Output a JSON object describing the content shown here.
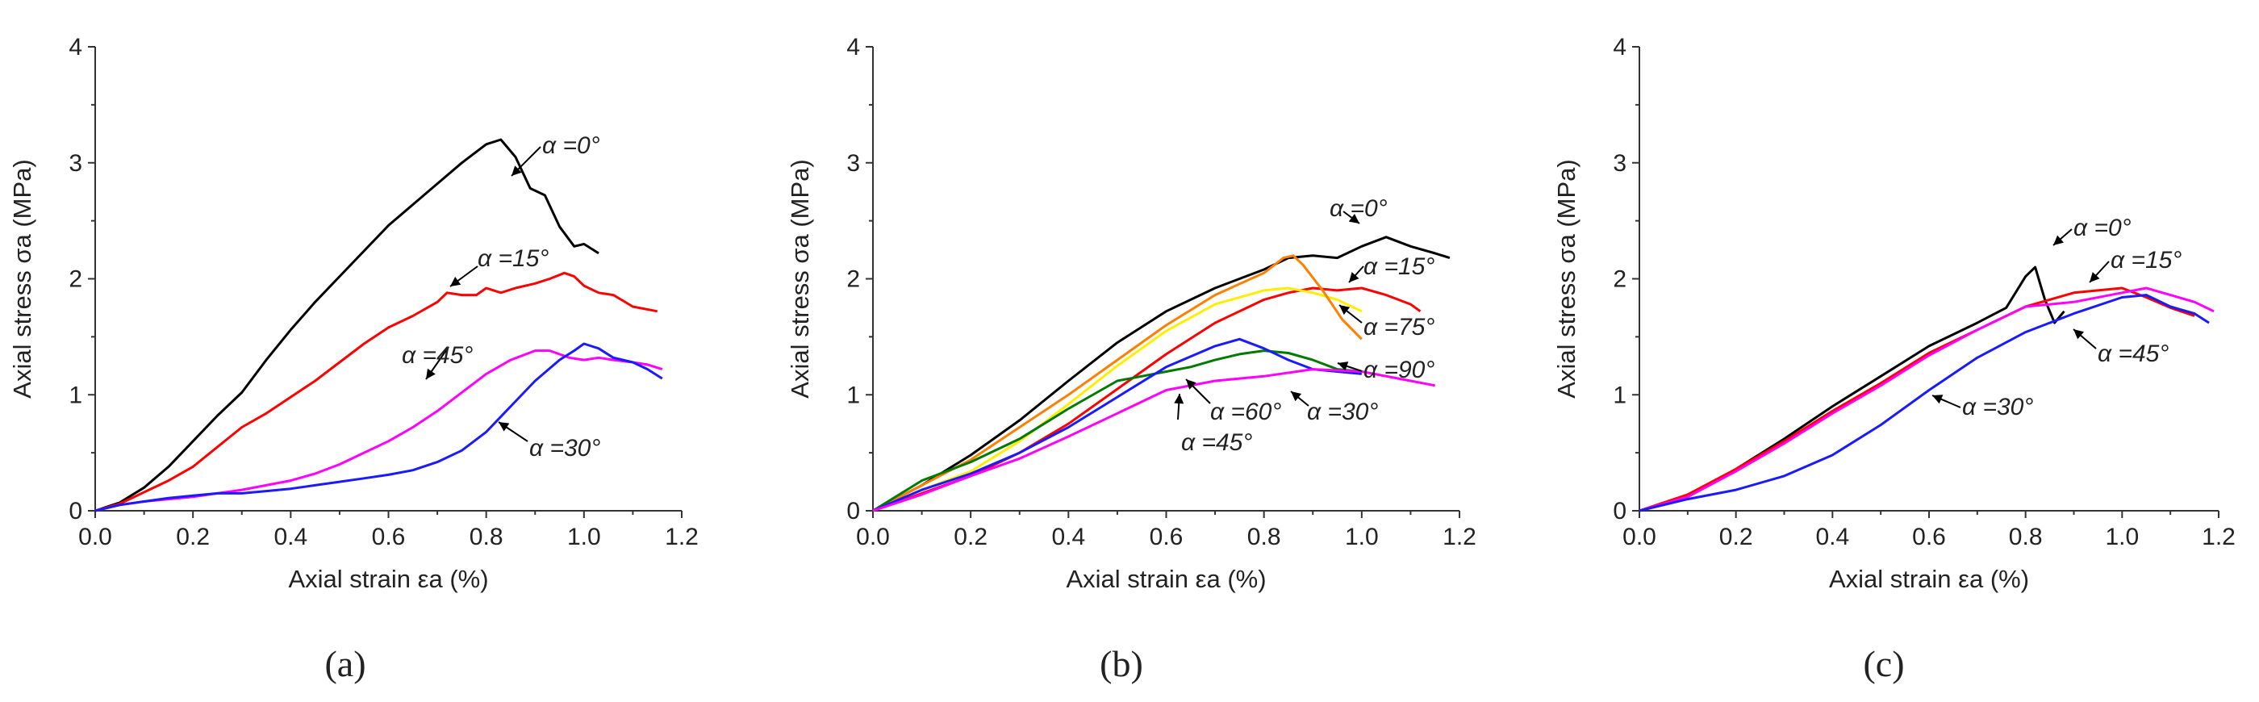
{
  "figure": {
    "colors": {
      "black": "#000000",
      "red": "#ff0000",
      "magenta": "#ff00ff",
      "blue": "#1a1aff",
      "orange": "#ff7f00",
      "yellow": "#ffee00",
      "green": "#007a00"
    }
  },
  "chart_data": [
    {
      "type": "line",
      "panel": "a",
      "caption": "(a)",
      "xlabel": "Axial strain εa (%)",
      "ylabel": "Axial stress σa (MPa)",
      "xlim": [
        0,
        1.2
      ],
      "ylim": [
        0,
        4
      ],
      "xticks": [
        "0.0",
        "0.2",
        "0.4",
        "0.6",
        "0.8",
        "1.0",
        "1.2"
      ],
      "yticks": [
        "0",
        "1",
        "2",
        "3",
        "4"
      ],
      "series": [
        {
          "name": "α=0°",
          "color": "#000000",
          "x": [
            0,
            0.05,
            0.1,
            0.15,
            0.2,
            0.25,
            0.3,
            0.35,
            0.4,
            0.45,
            0.5,
            0.55,
            0.6,
            0.65,
            0.7,
            0.75,
            0.8,
            0.83,
            0.86,
            0.89,
            0.92,
            0.95,
            0.98,
            1.0,
            1.03
          ],
          "y": [
            0,
            0.07,
            0.2,
            0.38,
            0.6,
            0.82,
            1.02,
            1.3,
            1.56,
            1.8,
            2.02,
            2.24,
            2.46,
            2.64,
            2.82,
            3.0,
            3.16,
            3.2,
            3.05,
            2.78,
            2.72,
            2.45,
            2.28,
            2.3,
            2.22
          ]
        },
        {
          "name": "α=15°",
          "color": "#ff0000",
          "x": [
            0,
            0.05,
            0.1,
            0.15,
            0.2,
            0.25,
            0.3,
            0.35,
            0.4,
            0.45,
            0.5,
            0.55,
            0.6,
            0.65,
            0.7,
            0.72,
            0.75,
            0.78,
            0.8,
            0.83,
            0.86,
            0.9,
            0.93,
            0.96,
            0.98,
            1.0,
            1.03,
            1.06,
            1.1,
            1.15
          ],
          "y": [
            0,
            0.06,
            0.16,
            0.26,
            0.38,
            0.55,
            0.72,
            0.84,
            0.98,
            1.12,
            1.28,
            1.44,
            1.58,
            1.68,
            1.8,
            1.88,
            1.86,
            1.86,
            1.92,
            1.88,
            1.92,
            1.96,
            2.0,
            2.05,
            2.02,
            1.94,
            1.88,
            1.86,
            1.76,
            1.72
          ]
        },
        {
          "name": "α=45°",
          "color": "#ff00ff",
          "x": [
            0,
            0.05,
            0.1,
            0.15,
            0.2,
            0.25,
            0.3,
            0.35,
            0.4,
            0.45,
            0.5,
            0.55,
            0.6,
            0.65,
            0.7,
            0.75,
            0.8,
            0.85,
            0.9,
            0.93,
            0.97,
            1.0,
            1.03,
            1.06,
            1.1,
            1.13,
            1.16
          ],
          "y": [
            0,
            0.05,
            0.08,
            0.1,
            0.12,
            0.15,
            0.18,
            0.22,
            0.26,
            0.32,
            0.4,
            0.5,
            0.6,
            0.72,
            0.86,
            1.02,
            1.18,
            1.3,
            1.38,
            1.38,
            1.32,
            1.3,
            1.32,
            1.3,
            1.28,
            1.26,
            1.22
          ]
        },
        {
          "name": "α=30°",
          "color": "#1a1aff",
          "x": [
            0,
            0.05,
            0.1,
            0.15,
            0.2,
            0.25,
            0.3,
            0.35,
            0.4,
            0.45,
            0.5,
            0.55,
            0.6,
            0.65,
            0.7,
            0.75,
            0.8,
            0.85,
            0.9,
            0.95,
            0.98,
            1.0,
            1.03,
            1.06,
            1.1,
            1.13,
            1.16
          ],
          "y": [
            0,
            0.05,
            0.08,
            0.11,
            0.13,
            0.15,
            0.15,
            0.17,
            0.19,
            0.22,
            0.25,
            0.28,
            0.31,
            0.35,
            0.42,
            0.52,
            0.68,
            0.9,
            1.12,
            1.3,
            1.38,
            1.44,
            1.4,
            1.32,
            1.28,
            1.22,
            1.14
          ]
        }
      ],
      "annotations": [
        {
          "text": "α =0°"
        },
        {
          "text": "α =15°"
        },
        {
          "text": "α =45°"
        },
        {
          "text": "α =30°"
        }
      ]
    },
    {
      "type": "line",
      "panel": "b",
      "caption": "(b)",
      "xlabel": "Axial strain εa (%)",
      "ylabel": "Axial stress σa (MPa)",
      "xlim": [
        0,
        1.2
      ],
      "ylim": [
        0,
        4
      ],
      "xticks": [
        "0.0",
        "0.2",
        "0.4",
        "0.6",
        "0.8",
        "1.0",
        "1.2"
      ],
      "yticks": [
        "0",
        "1",
        "2",
        "3",
        "4"
      ],
      "series": [
        {
          "name": "α=0°",
          "color": "#000000",
          "x": [
            0,
            0.1,
            0.2,
            0.3,
            0.4,
            0.5,
            0.6,
            0.7,
            0.8,
            0.85,
            0.9,
            0.95,
            1.0,
            1.05,
            1.1,
            1.15,
            1.18
          ],
          "y": [
            0,
            0.22,
            0.48,
            0.78,
            1.12,
            1.45,
            1.72,
            1.92,
            2.08,
            2.18,
            2.2,
            2.18,
            2.28,
            2.36,
            2.28,
            2.22,
            2.18
          ]
        },
        {
          "name": "α=15°",
          "color": "#ff0000",
          "x": [
            0,
            0.1,
            0.2,
            0.3,
            0.4,
            0.5,
            0.6,
            0.7,
            0.8,
            0.85,
            0.9,
            0.95,
            1.0,
            1.05,
            1.1,
            1.12
          ],
          "y": [
            0,
            0.15,
            0.3,
            0.5,
            0.75,
            1.05,
            1.35,
            1.62,
            1.82,
            1.88,
            1.92,
            1.9,
            1.92,
            1.86,
            1.78,
            1.72
          ]
        },
        {
          "name": "α=75°",
          "color": "#ffee00",
          "x": [
            0,
            0.1,
            0.2,
            0.3,
            0.4,
            0.5,
            0.6,
            0.7,
            0.8,
            0.85,
            0.9,
            0.95,
            1.0
          ],
          "y": [
            0,
            0.18,
            0.34,
            0.6,
            0.92,
            1.25,
            1.55,
            1.78,
            1.9,
            1.92,
            1.88,
            1.82,
            1.72
          ]
        },
        {
          "name": "α=90°",
          "color": "#ff7f00",
          "x": [
            0,
            0.1,
            0.2,
            0.3,
            0.4,
            0.5,
            0.6,
            0.7,
            0.8,
            0.84,
            0.86,
            0.88,
            0.92,
            0.96,
            1.0
          ],
          "y": [
            0,
            0.22,
            0.44,
            0.72,
            1.0,
            1.3,
            1.6,
            1.86,
            2.05,
            2.18,
            2.2,
            2.12,
            1.9,
            1.65,
            1.48
          ]
        },
        {
          "name": "α=60°",
          "color": "#007a00",
          "x": [
            0,
            0.1,
            0.2,
            0.3,
            0.4,
            0.5,
            0.55,
            0.6,
            0.65,
            0.7,
            0.75,
            0.8,
            0.85,
            0.9,
            0.95,
            1.0
          ],
          "y": [
            0,
            0.26,
            0.42,
            0.62,
            0.88,
            1.12,
            1.16,
            1.2,
            1.24,
            1.3,
            1.35,
            1.38,
            1.36,
            1.3,
            1.22,
            1.2
          ]
        },
        {
          "name": "α=30°",
          "color": "#1a1aff",
          "x": [
            0,
            0.1,
            0.2,
            0.3,
            0.4,
            0.5,
            0.6,
            0.7,
            0.75,
            0.8,
            0.85,
            0.9,
            0.95,
            1.0
          ],
          "y": [
            0,
            0.18,
            0.32,
            0.5,
            0.72,
            0.98,
            1.24,
            1.42,
            1.48,
            1.4,
            1.3,
            1.22,
            1.2,
            1.18
          ]
        },
        {
          "name": "α=45°",
          "color": "#ff00ff",
          "x": [
            0,
            0.1,
            0.2,
            0.3,
            0.4,
            0.5,
            0.6,
            0.7,
            0.8,
            0.9,
            1.0,
            1.1,
            1.15
          ],
          "y": [
            0,
            0.14,
            0.3,
            0.45,
            0.64,
            0.84,
            1.04,
            1.12,
            1.16,
            1.22,
            1.2,
            1.12,
            1.08
          ]
        }
      ],
      "annotations": [
        {
          "text": "α =0°"
        },
        {
          "text": "α =15°"
        },
        {
          "text": "α =75°"
        },
        {
          "text": "α =90°"
        },
        {
          "text": "α =60°"
        },
        {
          "text": "α =30°"
        },
        {
          "text": "α =45°"
        }
      ]
    },
    {
      "type": "line",
      "panel": "c",
      "caption": "(c)",
      "xlabel": "Axial strain εa (%)",
      "ylabel": "Axial stress σa (MPa)",
      "xlim": [
        0,
        1.2
      ],
      "ylim": [
        0,
        4
      ],
      "xticks": [
        "0.0",
        "0.2",
        "0.4",
        "0.6",
        "0.8",
        "1.0",
        "1.2"
      ],
      "yticks": [
        "0",
        "1",
        "2",
        "3",
        "4"
      ],
      "series": [
        {
          "name": "α=0°",
          "color": "#000000",
          "x": [
            0,
            0.1,
            0.2,
            0.3,
            0.4,
            0.5,
            0.6,
            0.7,
            0.76,
            0.8,
            0.82,
            0.84,
            0.86,
            0.88
          ],
          "y": [
            0,
            0.12,
            0.36,
            0.62,
            0.9,
            1.16,
            1.42,
            1.62,
            1.75,
            2.02,
            2.1,
            1.82,
            1.62,
            1.72
          ]
        },
        {
          "name": "α=15°",
          "color": "#ff0000",
          "x": [
            0,
            0.1,
            0.2,
            0.3,
            0.4,
            0.5,
            0.6,
            0.7,
            0.8,
            0.9,
            1.0,
            1.05,
            1.1,
            1.15
          ],
          "y": [
            0,
            0.14,
            0.36,
            0.6,
            0.86,
            1.1,
            1.36,
            1.56,
            1.76,
            1.88,
            1.92,
            1.84,
            1.75,
            1.68
          ]
        },
        {
          "name": "α=45°",
          "color": "#ff00ff",
          "x": [
            0,
            0.1,
            0.2,
            0.3,
            0.4,
            0.5,
            0.6,
            0.7,
            0.8,
            0.9,
            1.0,
            1.05,
            1.1,
            1.15,
            1.19
          ],
          "y": [
            0,
            0.12,
            0.34,
            0.58,
            0.84,
            1.08,
            1.34,
            1.56,
            1.76,
            1.8,
            1.88,
            1.92,
            1.86,
            1.8,
            1.72
          ]
        },
        {
          "name": "α=30°",
          "color": "#1a1aff",
          "x": [
            0,
            0.1,
            0.2,
            0.3,
            0.4,
            0.5,
            0.6,
            0.7,
            0.8,
            0.9,
            1.0,
            1.05,
            1.1,
            1.15,
            1.18
          ],
          "y": [
            0,
            0.1,
            0.18,
            0.3,
            0.48,
            0.74,
            1.04,
            1.32,
            1.54,
            1.7,
            1.84,
            1.86,
            1.76,
            1.7,
            1.62
          ]
        }
      ],
      "annotations": [
        {
          "text": "α =0°"
        },
        {
          "text": "α =15°"
        },
        {
          "text": "α =45°"
        },
        {
          "text": "α =30°"
        }
      ]
    }
  ]
}
